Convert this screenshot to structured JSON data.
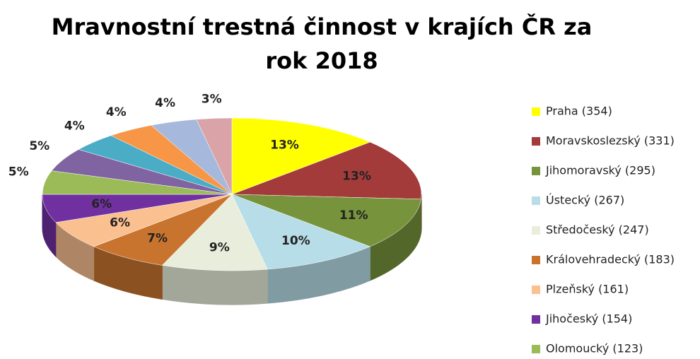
{
  "chart_data": {
    "type": "pie",
    "title": "Mravnostní trestná činnost v krajích ČR za rok 2018",
    "categories": [
      "Praha (354)",
      "Moravskoslezský (331)",
      "Jihomoravský (295)",
      "Ústecký (267)",
      "Středočeský (247)",
      "Královehradecký (183)",
      "Plzeňský (161)",
      "Jihočeský (154)",
      "Olomoucký (123)",
      null,
      null,
      null,
      null,
      null
    ],
    "values": [
      13,
      13,
      11,
      10,
      9,
      7,
      6,
      6,
      5,
      5,
      4,
      4,
      4,
      3
    ],
    "value_labels": [
      "13%",
      "13%",
      "11%",
      "10%",
      "9%",
      "7%",
      "6%",
      "6%",
      "5%",
      "5%",
      "4%",
      "4%",
      "4%",
      "3%"
    ],
    "colors": [
      "#ffff00",
      "#a33b3b",
      "#77933c",
      "#b7dde8",
      "#e8eedb",
      "#c8742f",
      "#fac090",
      "#7030a0",
      "#9bbb59",
      "#8064a2",
      "#4bacc6",
      "#f79646",
      "#a6b8dc",
      "#d9a3a8"
    ],
    "legend": "right"
  }
}
